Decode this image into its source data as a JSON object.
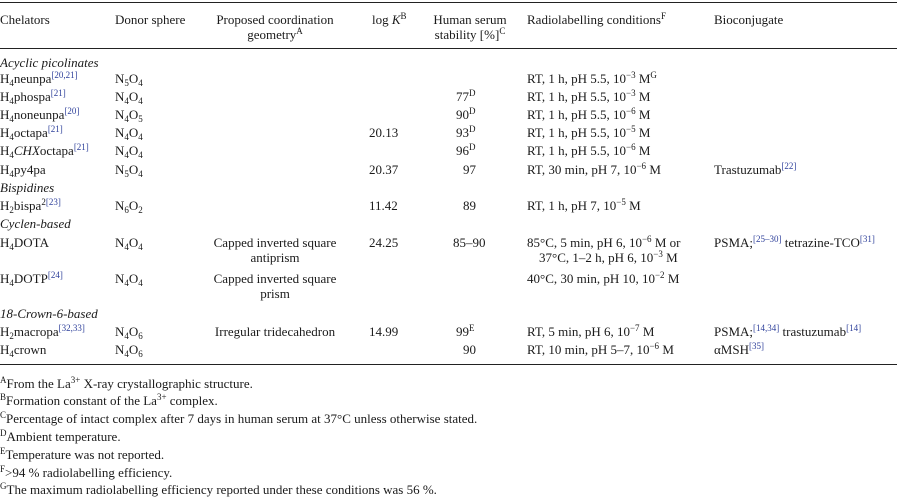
{
  "headers": {
    "chelators": "Chelators",
    "donor_sphere": "Donor sphere",
    "geometry_1": "Proposed coordination",
    "geometry_2": "geometry",
    "geometry_mark": "A",
    "logk_a": "log ",
    "logk_k": "K",
    "logk_mark": "B",
    "stability_1": "Human serum",
    "stability_2": "stability [%]",
    "stability_mark": "C",
    "conditions": "Radiolabelling conditions",
    "conditions_mark": "F",
    "bioconjugate": "Bioconjugate"
  },
  "sections": {
    "acyclic": "Acyclic picolinates",
    "bispidines": "Bispidines",
    "cyclen": "Cyclen-based",
    "crown": "18-Crown-6-based"
  },
  "rows": [
    {
      "pre": "H",
      "sub1": "4",
      "name": "neunpa",
      "ref": "[20,21]",
      "dA": "N",
      "dAs": "5",
      "dB": "O",
      "dBs": "4",
      "logk": "",
      "stab": "",
      "stab_mark": "",
      "cond": "RT, 1 h, pH 5.5, 10",
      "exp": "−3",
      "cond_tail": " M",
      "cond_mark": "G",
      "bio": ""
    },
    {
      "pre": "H",
      "sub1": "4",
      "name": "phospa",
      "ref": "[21]",
      "dA": "N",
      "dAs": "4",
      "dB": "O",
      "dBs": "4",
      "logk": "",
      "stab": "77",
      "stab_mark": "D",
      "cond": "RT, 1 h, pH 5.5, 10",
      "exp": "−3",
      "cond_tail": " M",
      "cond_mark": "",
      "bio": ""
    },
    {
      "pre": "H",
      "sub1": "4",
      "name": "noneunpa",
      "ref": "[20]",
      "dA": "N",
      "dAs": "4",
      "dB": "O",
      "dBs": "5",
      "logk": "",
      "stab": "90",
      "stab_mark": "D",
      "cond": "RT, 1 h, pH 5.5, 10",
      "exp": "−6",
      "cond_tail": " M",
      "cond_mark": "",
      "bio": ""
    },
    {
      "pre": "H",
      "sub1": "4",
      "name": "octapa",
      "ref": "[21]",
      "dA": "N",
      "dAs": "4",
      "dB": "O",
      "dBs": "4",
      "logk": "20.13",
      "stab": "93",
      "stab_mark": "D",
      "cond": "RT, 1 h, pH 5.5, 10",
      "exp": "−5",
      "cond_tail": " M",
      "cond_mark": "",
      "bio": ""
    },
    {
      "pre": "H",
      "sub1": "4",
      "name_it": "CHX",
      "name": "octapa",
      "ref": "[21]",
      "dA": "N",
      "dAs": "4",
      "dB": "O",
      "dBs": "4",
      "logk": "",
      "stab": "96",
      "stab_mark": "D",
      "cond": "RT, 1 h, pH 5.5, 10",
      "exp": "−6",
      "cond_tail": " M",
      "cond_mark": "",
      "bio": ""
    },
    {
      "pre": "H",
      "sub1": "4",
      "name": "py4pa",
      "ref": "",
      "dA": "N",
      "dAs": "5",
      "dB": "O",
      "dBs": "4",
      "logk": "20.37",
      "stab": "97",
      "stab_mark": "",
      "cond": "RT, 30 min, pH 7, 10",
      "exp": "−6",
      "cond_tail": " M",
      "cond_mark": "",
      "bio": "Trastuzumab",
      "bio_ref": "[22]"
    },
    {
      "pre": "H",
      "sub1": "2",
      "name": "bispa",
      "name_sup": "2",
      "ref": "[23]",
      "dA": "N",
      "dAs": "6",
      "dB": "O",
      "dBs": "2",
      "logk": "11.42",
      "stab": "89",
      "stab_mark": "",
      "cond": "RT, 1 h, pH 7, 10",
      "exp": "−5",
      "cond_tail": " M",
      "cond_mark": "",
      "bio": ""
    },
    {
      "pre": "H",
      "sub1": "4",
      "name": "DOTA",
      "ref": "",
      "dA": "N",
      "dAs": "4",
      "dB": "O",
      "dBs": "4",
      "geo1": "Capped inverted square",
      "geo2": "antiprism",
      "logk": "24.25",
      "stab": "85–90",
      "stab_mark": "",
      "cond": "85°C, 5 min, pH 6, 10",
      "exp": "−6",
      "cond_tail": " M or",
      "cond2": "37°C, 1–2 h, pH 6, 10",
      "exp2": "−3",
      "cond2_tail": " M",
      "cond_mark": "",
      "bio": "PSMA;",
      "bio_ref": "[25–30]",
      "bio2": " tetrazine-TCO",
      "bio2_ref": "[31]"
    },
    {
      "pre": "H",
      "sub1": "4",
      "name": "DOTP",
      "ref": "[24]",
      "dA": "N",
      "dAs": "4",
      "dB": "O",
      "dBs": "4",
      "geo1": "Capped inverted square",
      "geo2": "prism",
      "logk": "",
      "stab": "",
      "stab_mark": "",
      "cond": "40°C, 30 min, pH 10, 10",
      "exp": "−2",
      "cond_tail": " M",
      "cond_mark": "",
      "bio": ""
    },
    {
      "pre": "H",
      "sub1": "2",
      "name": "macropa",
      "ref": "[32,33]",
      "dA": "N",
      "dAs": "4",
      "dB": "O",
      "dBs": "6",
      "geo1": "Irregular tridecahedron",
      "logk": "14.99",
      "stab": "99",
      "stab_mark": "E",
      "cond": "RT, 5 min, pH 6, 10",
      "exp": "−7",
      "cond_tail": " M",
      "cond_mark": "",
      "bio": "PSMA;",
      "bio_ref": "[14,34]",
      "bio2": " trastuzumab",
      "bio2_ref": "[14]"
    },
    {
      "pre": "H",
      "sub1": "4",
      "name": "crown",
      "ref": "",
      "dA": "N",
      "dAs": "4",
      "dB": "O",
      "dBs": "6",
      "logk": "",
      "stab": "90",
      "stab_mark": "",
      "cond": "RT, 10 min, pH 5–7, 10",
      "exp": "−6",
      "cond_tail": " M",
      "cond_mark": "",
      "bio": "αMSH",
      "bio_ref": "[35]"
    }
  ],
  "footnotes": [
    {
      "mark": "A",
      "a": "From the La",
      "sup": "3+",
      "b": " X-ray crystallographic structure."
    },
    {
      "mark": "B",
      "a": "Formation constant of the La",
      "sup": "3+",
      "b": " complex."
    },
    {
      "mark": "C",
      "a": "Percentage of intact complex after 7 days in human serum at 37°C unless otherwise stated.",
      "sup": "",
      "b": ""
    },
    {
      "mark": "D",
      "a": "Ambient temperature.",
      "sup": "",
      "b": ""
    },
    {
      "mark": "E",
      "a": "Temperature was not reported.",
      "sup": "",
      "b": ""
    },
    {
      "mark": "F",
      "a": ">94 % radiolabelling efficiency.",
      "sup": "",
      "b": ""
    },
    {
      "mark": "G",
      "a": "The maximum radiolabelling efficiency reported under these conditions was 56 %.",
      "sup": "",
      "b": ""
    }
  ]
}
